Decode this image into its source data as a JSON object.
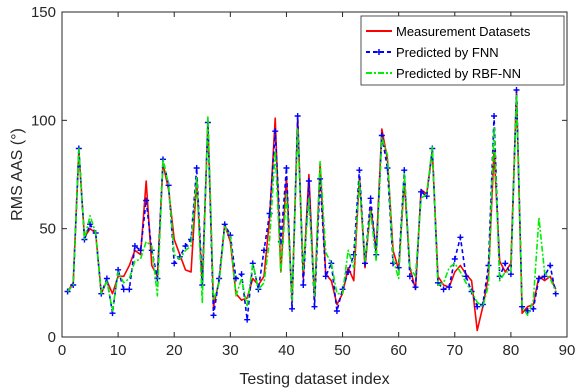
{
  "chart_data": {
    "type": "line",
    "title": "",
    "xlabel": "Testing dataset index",
    "ylabel": "RMS AAS (°)",
    "xlim": [
      0,
      90
    ],
    "ylim": [
      0,
      150
    ],
    "xticks": [
      0,
      10,
      20,
      30,
      40,
      50,
      60,
      70,
      80,
      90
    ],
    "yticks": [
      0,
      50,
      100,
      150
    ],
    "xtick_labels": [
      "0",
      "10",
      "20",
      "30",
      "40",
      "50",
      "60",
      "70",
      "80",
      "90"
    ],
    "ytick_labels": [
      "0",
      "50",
      "100",
      "150"
    ],
    "grid": false,
    "legend_position": "top-right",
    "x": [
      1,
      2,
      3,
      4,
      5,
      6,
      7,
      8,
      9,
      10,
      11,
      12,
      13,
      14,
      15,
      16,
      17,
      18,
      19,
      20,
      21,
      22,
      23,
      24,
      25,
      26,
      27,
      28,
      29,
      30,
      31,
      32,
      33,
      34,
      35,
      36,
      37,
      38,
      39,
      40,
      41,
      42,
      43,
      44,
      45,
      46,
      47,
      48,
      49,
      50,
      51,
      52,
      53,
      54,
      55,
      56,
      57,
      58,
      59,
      60,
      61,
      62,
      63,
      64,
      65,
      66,
      67,
      68,
      69,
      70,
      71,
      72,
      73,
      74,
      75,
      76,
      77,
      78,
      79,
      80,
      81,
      82,
      83,
      84,
      85,
      86,
      87,
      88
    ],
    "series": [
      {
        "name": "Measurement Datasets",
        "color": "#ff0000",
        "style": "solid",
        "values": [
          21,
          25,
          86,
          46,
          50,
          48,
          20,
          26,
          20,
          28,
          28,
          33,
          40,
          38,
          72,
          33,
          28,
          80,
          68,
          45,
          38,
          31,
          30,
          73,
          23,
          100,
          14,
          26,
          52,
          44,
          20,
          17,
          18,
          27,
          24,
          28,
          55,
          101,
          30,
          74,
          16,
          101,
          27,
          75,
          17,
          80,
          29,
          26,
          15,
          20,
          32,
          26,
          74,
          32,
          60,
          40,
          96,
          82,
          40,
          31,
          72,
          32,
          22,
          68,
          66,
          86,
          28,
          24,
          23,
          30,
          33,
          29,
          26,
          3,
          14,
          28,
          86,
          35,
          30,
          34,
          113,
          11,
          14,
          15,
          28,
          26,
          28,
          22
        ],
        "marker": "none"
      },
      {
        "name": "Predicted by FNN",
        "color": "#0000ff",
        "style": "dashed",
        "values": [
          21,
          24,
          87,
          45,
          52,
          48,
          20,
          27,
          11,
          31,
          22,
          22,
          42,
          40,
          63,
          40,
          27,
          82,
          70,
          34,
          37,
          42,
          45,
          78,
          24,
          99,
          10,
          27,
          52,
          47,
          27,
          29,
          8,
          34,
          22,
          40,
          57,
          95,
          44,
          78,
          13,
          102,
          24,
          72,
          14,
          73,
          28,
          34,
          12,
          22,
          30,
          38,
          77,
          34,
          64,
          38,
          93,
          78,
          34,
          32,
          77,
          28,
          23,
          67,
          65,
          87,
          25,
          22,
          23,
          36,
          46,
          28,
          21,
          14,
          15,
          33,
          102,
          28,
          34,
          29,
          114,
          14,
          12,
          13,
          27,
          28,
          33,
          20
        ],
        "marker": "plus"
      },
      {
        "name": "Predicted by RBF-NN",
        "color": "#00ee00",
        "style": "dashdot",
        "values": [
          21,
          24,
          87,
          45,
          56,
          48,
          20,
          26,
          12,
          30,
          25,
          27,
          35,
          36,
          44,
          42,
          19,
          82,
          70,
          38,
          36,
          40,
          42,
          74,
          16,
          102,
          17,
          25,
          51,
          46,
          19,
          27,
          14,
          34,
          22,
          25,
          45,
          86,
          30,
          66,
          17,
          96,
          31,
          64,
          19,
          81,
          39,
          34,
          20,
          20,
          40,
          32,
          72,
          35,
          58,
          35,
          92,
          84,
          36,
          27,
          76,
          32,
          28,
          64,
          66,
          88,
          24,
          25,
          32,
          34,
          30,
          25,
          21,
          16,
          14,
          24,
          97,
          26,
          30,
          30,
          112,
          14,
          10,
          17,
          55,
          30,
          27,
          21
        ],
        "marker": "none"
      }
    ]
  }
}
